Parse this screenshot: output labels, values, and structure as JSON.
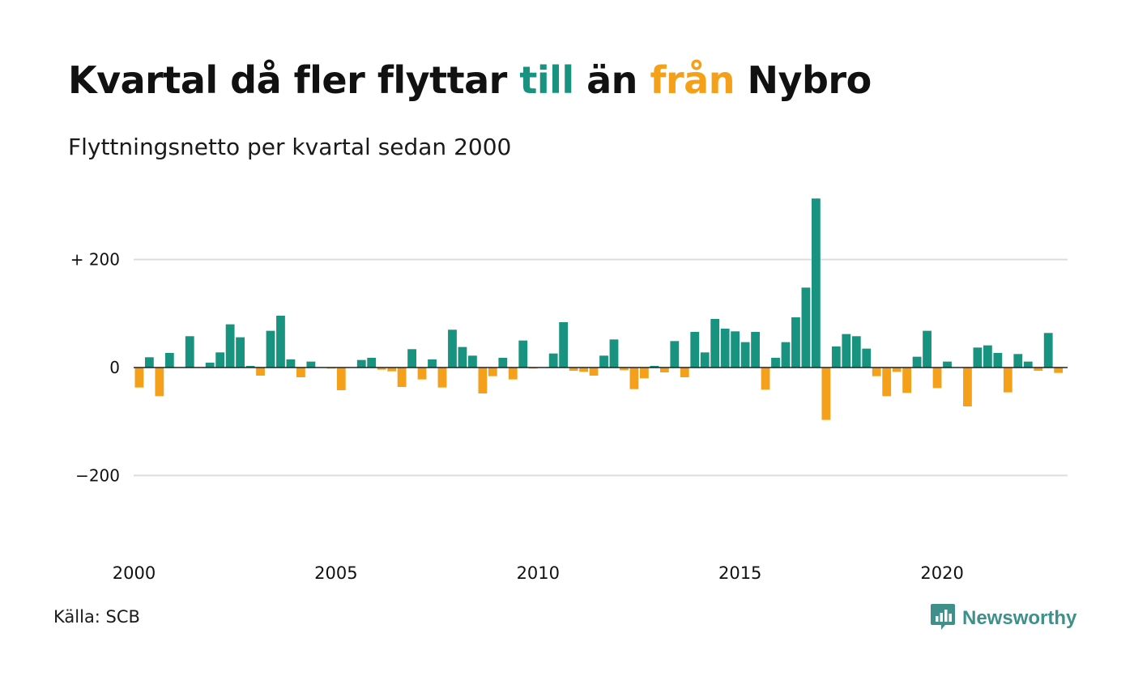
{
  "header": {
    "title_part1": "Kvartal då fler flyttar ",
    "title_till": "till",
    "title_part2": " än ",
    "title_fran": "från",
    "title_part3": " Nybro",
    "subtitle": "Flyttningsnetto per kvartal sedan 2000"
  },
  "footer": {
    "source": "Källa: SCB",
    "brand": "Newsworthy"
  },
  "colors": {
    "positive": "#17937f",
    "negative": "#f5a01a",
    "grid": "#dddddd",
    "baseline": "#222222",
    "brand": "#3f8f8a"
  },
  "icons": {
    "brand_logo": "chat-bubble-bar-chart-icon"
  },
  "chart_data": {
    "type": "bar",
    "x_start": "2000 Q1",
    "x_ticks": [
      2000,
      2005,
      2010,
      2015,
      2020
    ],
    "y_ticks": [
      {
        "value": 200,
        "label": "+ 200"
      },
      {
        "value": 0,
        "label": "0"
      },
      {
        "value": -200,
        "label": "−200"
      }
    ],
    "ylim": [
      -320,
      320
    ],
    "grid": true,
    "series": [
      {
        "values": [
          -37,
          19,
          -53,
          27,
          0,
          58,
          0,
          9,
          28,
          80,
          56,
          3,
          -15,
          68,
          96,
          15,
          -18,
          11,
          0,
          -2,
          -42,
          0,
          14,
          18,
          -4,
          -7,
          -36,
          34,
          -22,
          15,
          -37,
          70,
          38,
          22,
          -48,
          -16,
          18,
          -22,
          50,
          -2,
          0,
          26,
          84,
          -6,
          -8,
          -15,
          22,
          52,
          -5,
          -40,
          -20,
          3,
          -9,
          49,
          -18,
          66,
          28,
          90,
          72,
          67,
          47,
          66,
          -41,
          18,
          47,
          93,
          148,
          313,
          -97,
          39,
          62,
          58,
          35,
          -16,
          -53,
          -8,
          -47,
          20,
          68,
          -38,
          11,
          0,
          -72,
          37,
          41,
          27,
          -46,
          25,
          11,
          -6,
          64,
          -10
        ]
      }
    ]
  }
}
